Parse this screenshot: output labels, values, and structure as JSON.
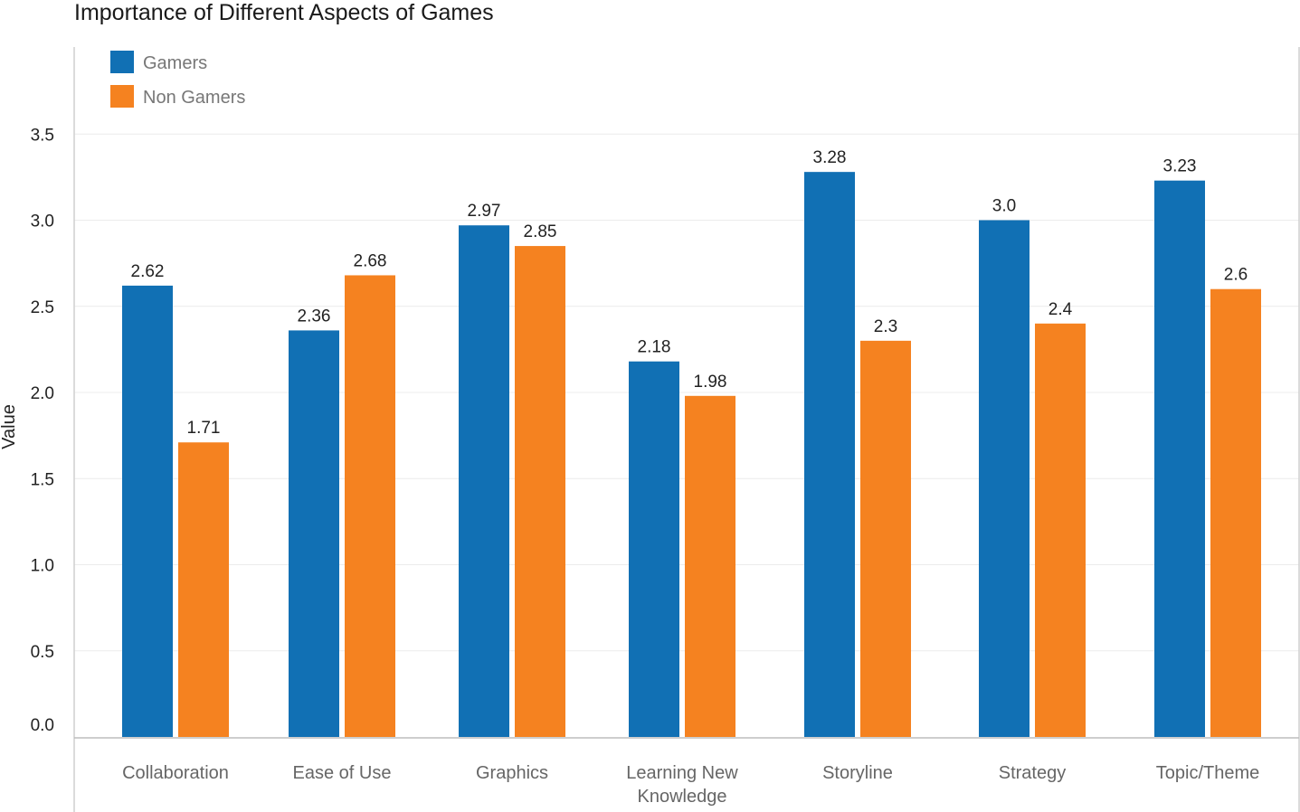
{
  "chart_data": {
    "type": "bar",
    "title": "Importance of Different Aspects of Games",
    "xlabel": "",
    "ylabel": "Value",
    "ylim": [
      0,
      3.9
    ],
    "yticks": [
      "0.0",
      "0.5",
      "1.0",
      "1.5",
      "2.0",
      "2.5",
      "3.0",
      "3.5"
    ],
    "grid": true,
    "legend_position": "top-left",
    "categories": [
      "Collaboration",
      "Ease of Use",
      "Graphics",
      "Learning New Knowledge",
      "Storyline",
      "Strategy",
      "Topic/Theme"
    ],
    "category_lines": [
      [
        "Collaboration"
      ],
      [
        "Ease of Use"
      ],
      [
        "Graphics"
      ],
      [
        "Learning New",
        "Knowledge"
      ],
      [
        "Storyline"
      ],
      [
        "Strategy"
      ],
      [
        "Topic/Theme"
      ]
    ],
    "series": [
      {
        "name": "Gamers",
        "color": "#1170b4",
        "values": [
          2.62,
          2.36,
          2.97,
          2.18,
          3.28,
          3.0,
          3.23
        ],
        "labels": [
          "2.62",
          "2.36",
          "2.97",
          "2.18",
          "3.28",
          "3.0",
          "3.23"
        ]
      },
      {
        "name": "Non Gamers",
        "color": "#f58220",
        "values": [
          1.71,
          2.68,
          2.85,
          1.98,
          2.3,
          2.4,
          2.6
        ],
        "labels": [
          "1.71",
          "2.68",
          "2.85",
          "1.98",
          "2.3",
          "2.4",
          "2.6"
        ]
      }
    ]
  }
}
